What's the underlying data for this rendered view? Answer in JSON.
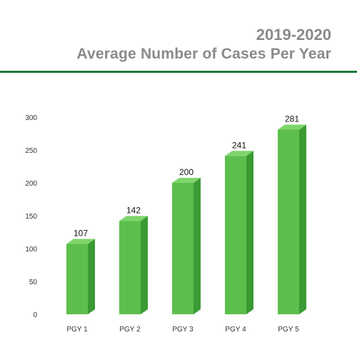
{
  "header": {
    "year": "2019-2020",
    "title": "Average Number of Cases Per Year"
  },
  "colors": {
    "rule": "#1e7a3c",
    "bar_front": "#5cbf4c",
    "bar_side": "#3a9a33",
    "bar_top": "#7fd46a",
    "title": "#8a8a8a"
  },
  "chart_data": {
    "type": "bar",
    "style": "3d",
    "categories": [
      "PGY 1",
      "PGY 2",
      "PGY 3",
      "PGY 4",
      "PGY 5"
    ],
    "values": [
      107,
      142,
      200,
      241,
      281
    ],
    "data_labels": [
      "107",
      "142",
      "200",
      "241",
      "281"
    ],
    "title": "Average Number of Cases Per Year",
    "xlabel": "",
    "ylabel": "",
    "ylim": [
      0,
      300
    ],
    "yticks": [
      0,
      50,
      100,
      150,
      200,
      250,
      300
    ],
    "grid": false,
    "legend": "none"
  }
}
